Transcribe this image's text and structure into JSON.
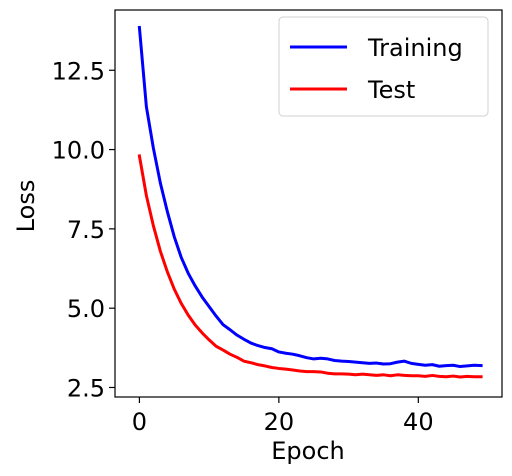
{
  "chart_data": {
    "type": "line",
    "xlabel": "Epoch",
    "ylabel": "Loss",
    "xlim": [
      -3.5,
      52
    ],
    "ylim": [
      2.2,
      14.4
    ],
    "xticks": [
      0,
      20,
      40
    ],
    "yticks": [
      2.5,
      5.0,
      7.5,
      10.0,
      12.5
    ],
    "ytick_labels": [
      "2.5",
      "5.0",
      "7.5",
      "10.0",
      "12.5"
    ],
    "legend_position": "top-right",
    "grid": false,
    "x": [
      0,
      1,
      2,
      3,
      4,
      5,
      6,
      7,
      8,
      9,
      10,
      11,
      12,
      13,
      14,
      15,
      16,
      17,
      18,
      19,
      20,
      21,
      22,
      23,
      24,
      25,
      26,
      27,
      28,
      29,
      30,
      31,
      32,
      33,
      34,
      35,
      36,
      37,
      38,
      39,
      40,
      41,
      42,
      43,
      44,
      45,
      46,
      47,
      48,
      49
    ],
    "series": [
      {
        "name": "Training",
        "color": "#0000ff",
        "values": [
          13.85,
          11.35,
          10.05,
          8.95,
          8.05,
          7.25,
          6.6,
          6.1,
          5.7,
          5.35,
          5.05,
          4.75,
          4.48,
          4.32,
          4.15,
          4.02,
          3.9,
          3.82,
          3.76,
          3.72,
          3.62,
          3.58,
          3.55,
          3.5,
          3.44,
          3.4,
          3.42,
          3.4,
          3.35,
          3.33,
          3.32,
          3.3,
          3.28,
          3.26,
          3.27,
          3.24,
          3.25,
          3.3,
          3.33,
          3.26,
          3.23,
          3.2,
          3.22,
          3.17,
          3.19,
          3.2,
          3.16,
          3.18,
          3.2,
          3.19
        ]
      },
      {
        "name": "Test",
        "color": "#ff0000",
        "values": [
          9.8,
          8.55,
          7.6,
          6.8,
          6.15,
          5.6,
          5.15,
          4.78,
          4.47,
          4.22,
          4.0,
          3.8,
          3.68,
          3.55,
          3.45,
          3.33,
          3.28,
          3.22,
          3.18,
          3.13,
          3.1,
          3.08,
          3.05,
          3.02,
          3.0,
          3.0,
          2.99,
          2.95,
          2.93,
          2.93,
          2.92,
          2.9,
          2.92,
          2.9,
          2.88,
          2.9,
          2.87,
          2.9,
          2.88,
          2.87,
          2.87,
          2.85,
          2.88,
          2.85,
          2.84,
          2.86,
          2.83,
          2.85,
          2.84,
          2.84
        ]
      }
    ]
  }
}
